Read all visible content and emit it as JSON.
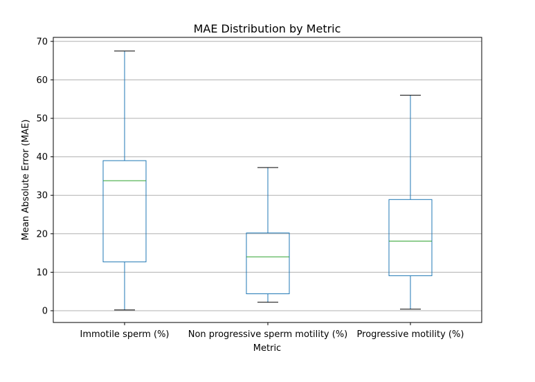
{
  "chart_data": {
    "type": "box",
    "title": "MAE Distribution by Metric",
    "xlabel": "Metric",
    "ylabel": "Mean Absolute Error (MAE)",
    "ylim": [
      -3,
      71
    ],
    "yticks": [
      0,
      10,
      20,
      30,
      40,
      50,
      60,
      70
    ],
    "grid": "horizontal",
    "categories": [
      "Immotile sperm (%)",
      "Non progressive sperm motility (%)",
      "Progressive motility (%)"
    ],
    "boxes": [
      {
        "whisker_low": 0.2,
        "q1": 12.7,
        "median": 33.8,
        "q3": 39.0,
        "whisker_high": 67.5
      },
      {
        "whisker_low": 2.2,
        "q1": 4.4,
        "median": 14.0,
        "q3": 20.2,
        "whisker_high": 37.2
      },
      {
        "whisker_low": 0.4,
        "q1": 9.1,
        "median": 18.1,
        "q3": 28.9,
        "whisker_high": 56.0
      }
    ],
    "colors": {
      "box": "#1f77b4",
      "median": "#2ca02c",
      "cap": "#000000",
      "grid": "#b0b0b0",
      "frame": "#000000"
    }
  }
}
